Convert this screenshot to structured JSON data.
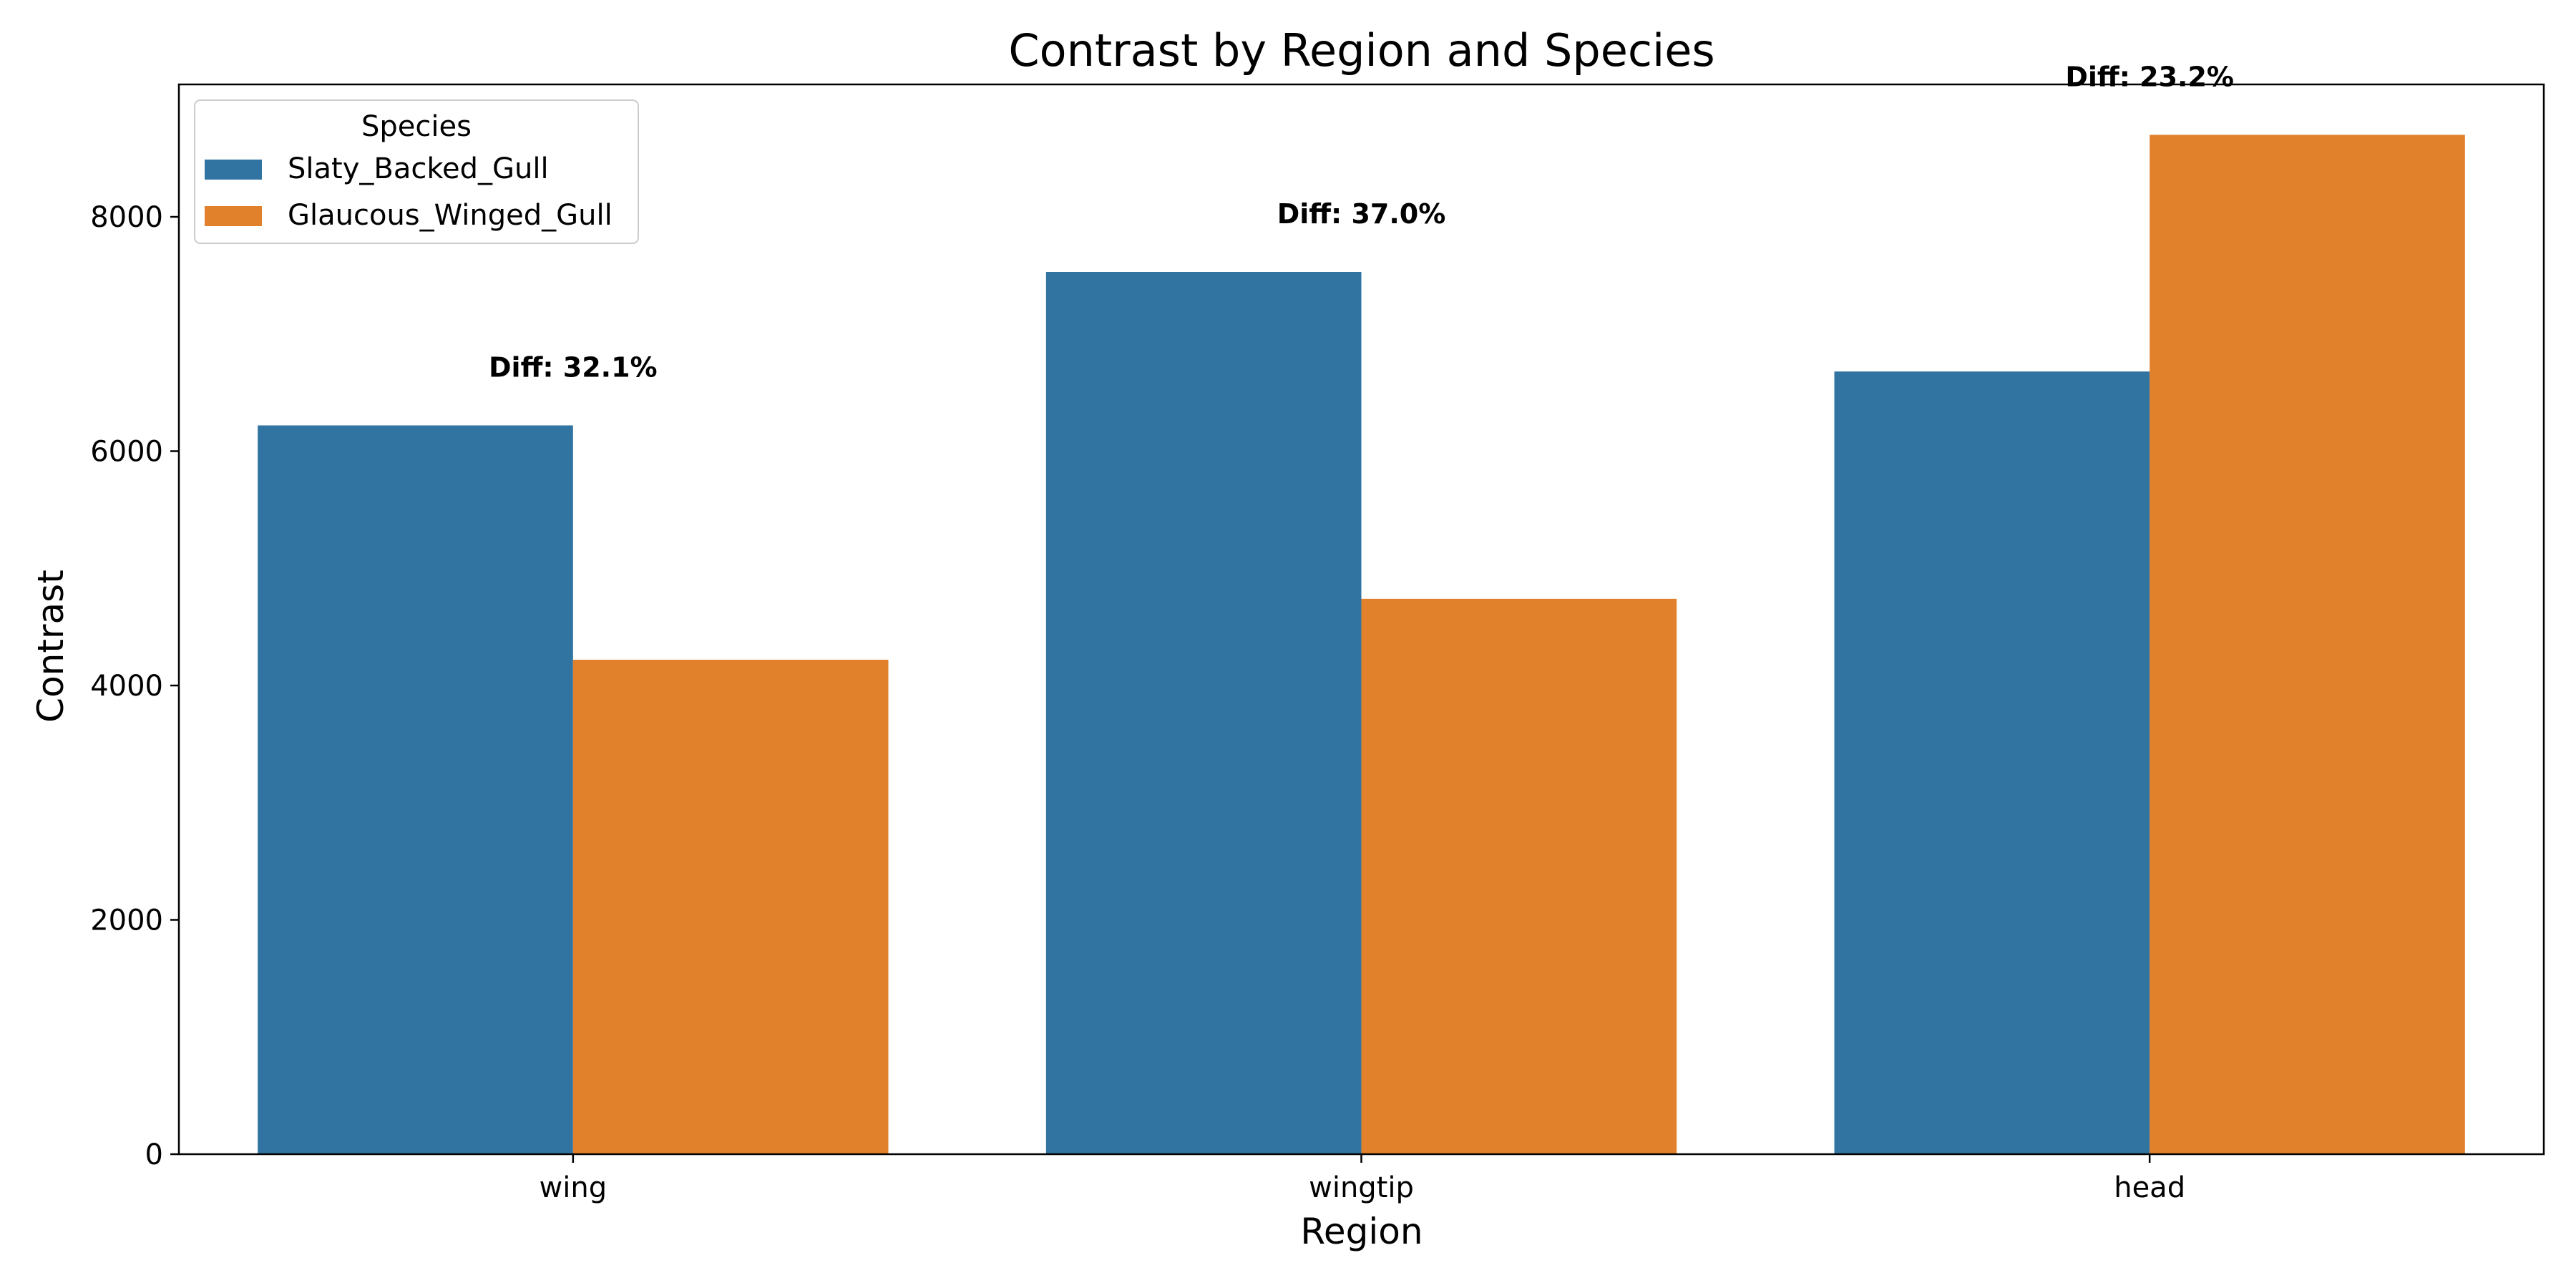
{
  "chart_data": {
    "type": "bar",
    "title": "Contrast by Region and Species",
    "xlabel": "Region",
    "ylabel": "Contrast",
    "categories": [
      "wing",
      "wingtip",
      "head"
    ],
    "series": [
      {
        "name": "Slaty_Backed_Gull",
        "color": "#3274a1",
        "values": [
          6220,
          7530,
          6680
        ]
      },
      {
        "name": "Glaucous_Winged_Gull",
        "color": "#e1812c",
        "values": [
          4220,
          4740,
          8700
        ]
      }
    ],
    "ylim": [
      0,
      9130
    ],
    "yticks": [
      0,
      2000,
      4000,
      6000,
      8000
    ],
    "ytick_labels": [
      "0",
      "2000",
      "4000",
      "6000",
      "8000"
    ],
    "annotations": [
      "Diff: 32.1%",
      "Diff: 37.0%",
      "Diff: 23.2%"
    ],
    "legend": {
      "title": "Species",
      "position": "top-left"
    },
    "grid": false
  }
}
